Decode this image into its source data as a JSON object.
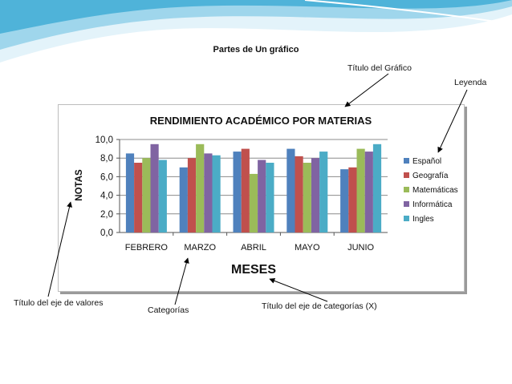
{
  "slide": {
    "title": "Partes de Un gráfico",
    "callouts": {
      "chart_title": "Título del Gráfico",
      "legend": "Leyenda",
      "value_axis_title": "Título del eje de valores",
      "categories": "Categorías",
      "category_axis_title": "Título del eje de categorías (X)"
    }
  },
  "colors": {
    "banner_light": "#e3f3fa",
    "banner_dark": "#4fb3d9",
    "gridline": "#8c8c8c",
    "callout_arrow": "#000000"
  },
  "chart_data": {
    "type": "bar",
    "title": "RENDIMIENTO ACADÉMICO POR MATERIAS",
    "xlabel": "MESES",
    "ylabel": "NOTAS",
    "categories": [
      "FEBRERO",
      "MARZO",
      "ABRIL",
      "MAYO",
      "JUNIO"
    ],
    "ylim": [
      0,
      10
    ],
    "yticks": [
      "0,0",
      "2,0",
      "4,0",
      "6,0",
      "8,0",
      "10,0"
    ],
    "grid": true,
    "legend_position": "right",
    "series": [
      {
        "name": "Español",
        "color": "#4f81bd",
        "values": [
          8.5,
          7.0,
          8.7,
          9.0,
          6.8
        ]
      },
      {
        "name": "Geografía",
        "color": "#c0504d",
        "values": [
          7.5,
          8.0,
          9.0,
          8.2,
          7.0
        ]
      },
      {
        "name": "Matemáticas",
        "color": "#9bbb59",
        "values": [
          8.0,
          9.5,
          6.3,
          7.5,
          9.0
        ]
      },
      {
        "name": "Informática",
        "color": "#8064a2",
        "values": [
          9.5,
          8.5,
          7.8,
          8.0,
          8.7
        ]
      },
      {
        "name": "Ingles",
        "color": "#4bacc6",
        "values": [
          7.8,
          8.3,
          7.5,
          8.7,
          9.5
        ]
      }
    ]
  }
}
